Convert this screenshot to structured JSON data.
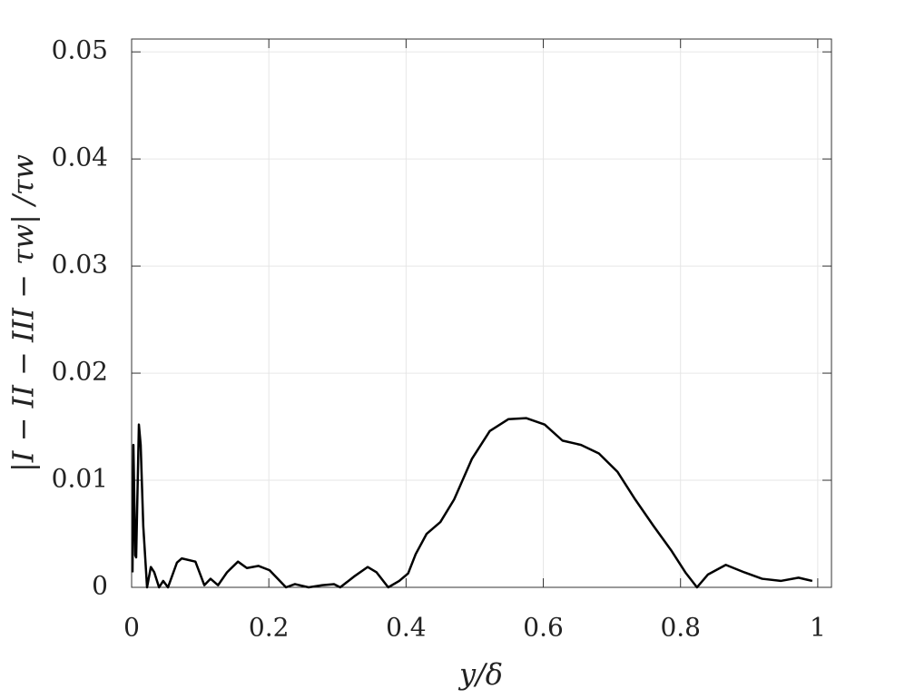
{
  "chart_data": {
    "type": "line",
    "xlabel": "y/δ",
    "ylabel": "|I − II − III − τw| /τw",
    "xlim": [
      0,
      1.02
    ],
    "ylim": [
      0,
      0.0512
    ],
    "xticks": [
      0,
      0.2,
      0.4,
      0.6,
      0.8,
      1
    ],
    "yticks": [
      0,
      0.01,
      0.02,
      0.03,
      0.04,
      0.05
    ],
    "grid": true,
    "series": [
      {
        "color": "#000000",
        "x": [
          0.0013,
          0.0026,
          0.0053,
          0.0066,
          0.0106,
          0.0132,
          0.017,
          0.0225,
          0.028,
          0.033,
          0.04,
          0.046,
          0.053,
          0.066,
          0.073,
          0.093,
          0.106,
          0.115,
          0.126,
          0.139,
          0.155,
          0.168,
          0.185,
          0.201,
          0.225,
          0.238,
          0.258,
          0.278,
          0.295,
          0.304,
          0.324,
          0.344,
          0.357,
          0.374,
          0.39,
          0.403,
          0.414,
          0.43,
          0.45,
          0.47,
          0.496,
          0.522,
          0.549,
          0.575,
          0.602,
          0.628,
          0.655,
          0.681,
          0.708,
          0.734,
          0.761,
          0.787,
          0.807,
          0.824,
          0.84,
          0.866,
          0.893,
          0.919,
          0.946,
          0.972,
          0.992
        ],
        "values": [
          0.0014,
          0.0133,
          0.003,
          0.0028,
          0.0152,
          0.0133,
          0.0057,
          0,
          0.0019,
          0.0014,
          0,
          0.0006,
          0,
          0.0023,
          0.0027,
          0.0024,
          0.0002,
          0.0008,
          0.0002,
          0.0014,
          0.0024,
          0.0018,
          0.002,
          0.0016,
          0,
          0.0003,
          0,
          0.0002,
          0.0003,
          0,
          0.001,
          0.0019,
          0.0014,
          0,
          0.0006,
          0.0013,
          0.0031,
          0.005,
          0.0061,
          0.0082,
          0.012,
          0.0146,
          0.0157,
          0.0158,
          0.0152,
          0.0137,
          0.0133,
          0.0125,
          0.0108,
          0.0082,
          0.0057,
          0.0034,
          0.0014,
          0,
          0.0012,
          0.0021,
          0.0014,
          0.0008,
          0.0006,
          0.0009,
          0.0006
        ]
      }
    ]
  }
}
